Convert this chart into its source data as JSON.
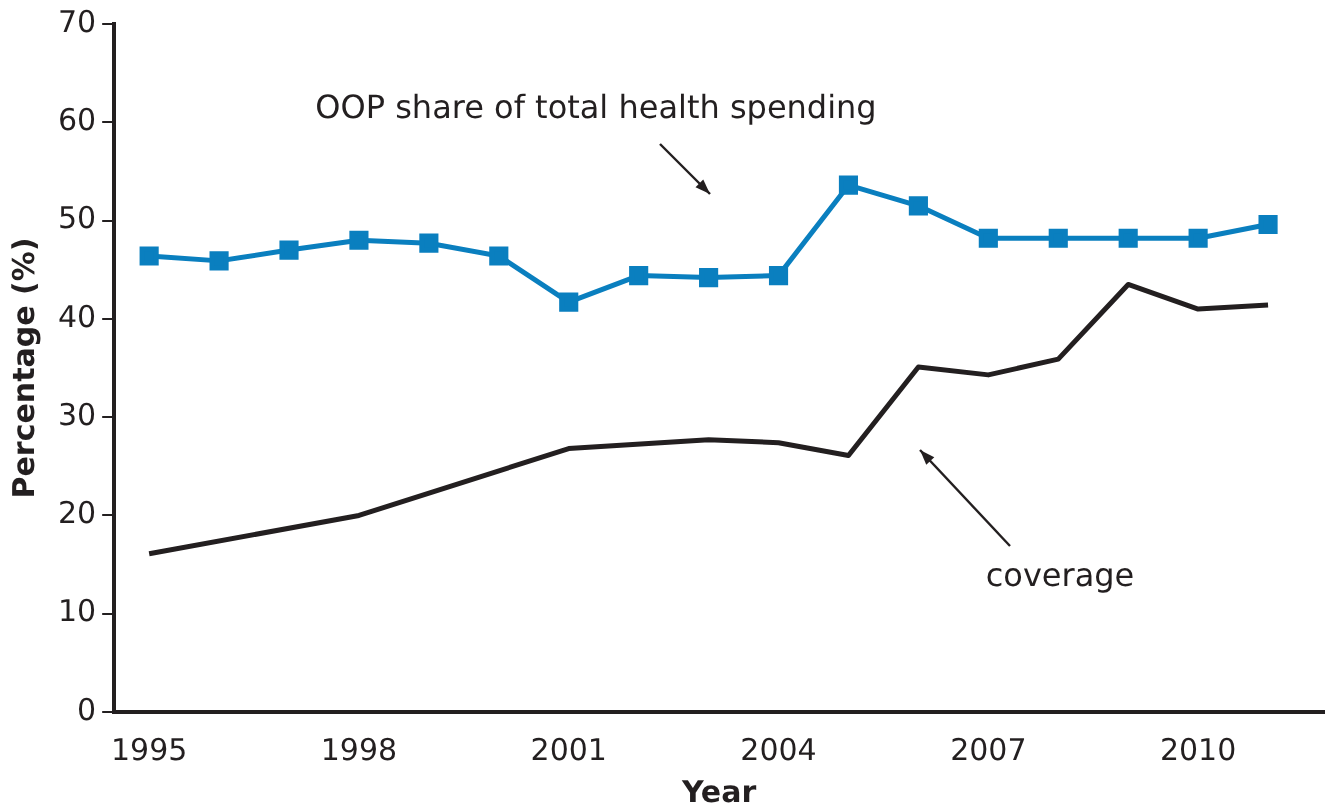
{
  "chart_data": {
    "type": "line",
    "xlabel": "Year",
    "ylabel": "Percentage (%)",
    "xlim": [
      1994.5,
      2011.8
    ],
    "xticks": [
      1995,
      1998,
      2001,
      2004,
      2007,
      2010
    ],
    "ylim": [
      0,
      70
    ],
    "yticks": [
      0,
      10,
      20,
      30,
      40,
      50,
      60,
      70
    ],
    "grid": false,
    "legend": false,
    "line_style": "solid",
    "series": [
      {
        "color": "#0a7fbf",
        "marker": "square",
        "x": [
          1995,
          1996,
          1997,
          1998,
          1999,
          2000,
          2001,
          2002,
          2003,
          2004,
          2005,
          2006,
          2007,
          2008,
          2009,
          2010,
          2011
        ],
        "values": [
          46.4,
          45.9,
          47.0,
          48.0,
          47.7,
          46.4,
          41.7,
          44.4,
          44.2,
          44.4,
          53.6,
          51.5,
          48.2,
          48.2,
          48.2,
          48.2,
          49.6
        ]
      },
      {
        "color": "#231f20",
        "marker": "none",
        "x": [
          1995,
          1998,
          2001,
          2003,
          2004,
          2005,
          2006,
          2007,
          2008,
          2009,
          2010,
          2011
        ],
        "values": [
          16.1,
          20.0,
          26.8,
          27.7,
          27.4,
          26.1,
          35.1,
          34.3,
          35.9,
          43.5,
          41.0,
          41.4
        ]
      }
    ],
    "annotations": [
      "OOP share of total health spending",
      "coverage"
    ]
  }
}
